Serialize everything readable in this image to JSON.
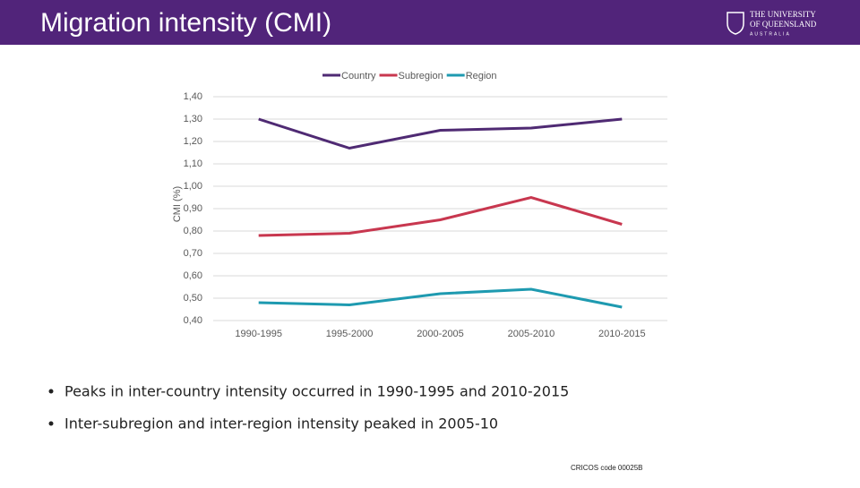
{
  "header": {
    "title": "Migration intensity (CMI)",
    "logo": {
      "line1": "THE UNIVERSITY",
      "line2": "OF QUEENSLAND",
      "line3": "AUSTRALIA"
    }
  },
  "chart_data": {
    "type": "line",
    "ylabel": "CMI (%)",
    "categories": [
      "1990-1995",
      "1995-2000",
      "2000-2005",
      "2005-2010",
      "2010-2015"
    ],
    "series": [
      {
        "name": "Country",
        "color": "#4f2a73",
        "values": [
          1.3,
          1.17,
          1.25,
          1.26,
          1.3
        ]
      },
      {
        "name": "Subregion",
        "color": "#c8374f",
        "values": [
          0.78,
          0.79,
          0.85,
          0.95,
          0.83
        ]
      },
      {
        "name": "Region",
        "color": "#1e9ab0",
        "values": [
          0.48,
          0.47,
          0.52,
          0.54,
          0.46
        ]
      }
    ],
    "ylim": [
      0.4,
      1.4
    ],
    "yticks": [
      {
        "value": 0.4,
        "label": "0,40"
      },
      {
        "value": 0.5,
        "label": "0,50"
      },
      {
        "value": 0.6,
        "label": "0,60"
      },
      {
        "value": 0.7,
        "label": "0,70"
      },
      {
        "value": 0.8,
        "label": "0,80"
      },
      {
        "value": 0.9,
        "label": "0,90"
      },
      {
        "value": 1.0,
        "label": "1,00"
      },
      {
        "value": 1.1,
        "label": "1,10"
      },
      {
        "value": 1.2,
        "label": "1,20"
      },
      {
        "value": 1.3,
        "label": "1,30"
      },
      {
        "value": 1.4,
        "label": "1,40"
      }
    ],
    "grid": true,
    "legend": "top"
  },
  "bullets": [
    "Peaks in inter-country intensity occurred in 1990-1995 and 2010-2015",
    "Inter-subregion and inter-region intensity peaked in 2005-10"
  ],
  "footer": "CRICOS code 00025B"
}
